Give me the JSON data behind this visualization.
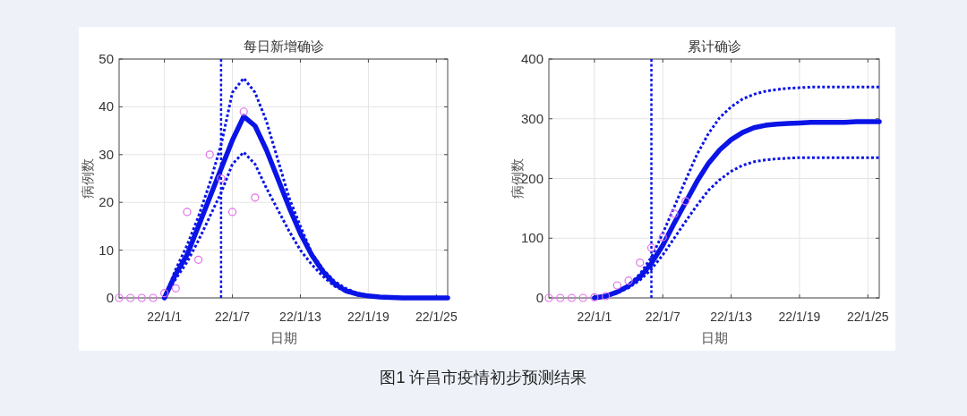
{
  "chart_data": [
    {
      "type": "line",
      "title": "每日新增确诊",
      "xlabel": "日期",
      "ylabel": "病例数",
      "ylim": [
        0,
        50
      ],
      "yticks": [
        0,
        10,
        20,
        30,
        40,
        50
      ],
      "categories": [
        null,
        null,
        null,
        null,
        "22/1/1",
        null,
        null,
        null,
        null,
        null,
        "22/1/7",
        null,
        null,
        null,
        null,
        null,
        "22/1/13",
        null,
        null,
        null,
        null,
        null,
        "22/1/19",
        null,
        null,
        null,
        null,
        null,
        "22/1/25",
        null
      ],
      "grid": true,
      "annotations": [
        "图1 许昌市疫情初步预测结果"
      ],
      "series": [
        {
          "type": "line",
          "line_style": "dotted",
          "color": "#0a14e6",
          "values": [
            null,
            null,
            null,
            null,
            0,
            6,
            11,
            17,
            24,
            32,
            43,
            46,
            43,
            37,
            29,
            21,
            15,
            9.4,
            6,
            3.5,
            2,
            1,
            0.5,
            0.2,
            0.1,
            0,
            0,
            0,
            0,
            0
          ]
        },
        {
          "type": "line",
          "line_style": "dotted",
          "color": "#0a14e6",
          "values": [
            null,
            null,
            null,
            null,
            0,
            4,
            7.5,
            12,
            17,
            22,
            28,
            30.5,
            28,
            23,
            18.5,
            14,
            10,
            7,
            4.5,
            2.5,
            1.3,
            0.6,
            0.3,
            0.1,
            0,
            0,
            0,
            0,
            0,
            0
          ]
        },
        {
          "type": "line",
          "line_style": "solid",
          "color": "#0a14e6",
          "values": [
            null,
            null,
            null,
            null,
            0,
            5,
            9,
            15,
            21,
            27,
            33,
            38,
            36,
            31,
            25,
            19,
            13.5,
            9,
            5.5,
            3,
            1.5,
            0.8,
            0.4,
            0.2,
            0.1,
            0,
            0,
            0,
            0,
            0
          ]
        },
        {
          "type": "scatter",
          "marker": "circle",
          "color": "#e070e8",
          "values": [
            0,
            0,
            0,
            0,
            1,
            2,
            18,
            8,
            30,
            25,
            18,
            39,
            21,
            null,
            null,
            null,
            null,
            null,
            null,
            null,
            null,
            null,
            null,
            null,
            null,
            null,
            null,
            null,
            null,
            null
          ]
        }
      ]
    },
    {
      "type": "line",
      "title": "累计确诊",
      "xlabel": "日期",
      "ylabel": "病例数",
      "ylim": [
        0,
        400
      ],
      "yticks": [
        0,
        100,
        200,
        300,
        400
      ],
      "categories": [
        null,
        null,
        null,
        null,
        "22/1/1",
        null,
        null,
        null,
        null,
        null,
        "22/1/7",
        null,
        null,
        null,
        null,
        null,
        "22/1/13",
        null,
        null,
        null,
        null,
        null,
        "22/1/19",
        null,
        null,
        null,
        null,
        null,
        "22/1/25",
        null
      ],
      "grid": true,
      "series": [
        {
          "type": "scatter",
          "marker": "circle",
          "color": "#e070e8",
          "values": [
            0,
            0,
            0,
            0,
            1,
            3,
            21,
            29,
            59,
            84,
            102,
            141,
            162,
            null,
            null,
            null,
            null,
            null,
            null,
            null,
            null,
            null,
            null,
            null,
            null,
            null,
            null,
            null,
            null,
            null
          ]
        },
        {
          "type": "line",
          "line_style": "dotted",
          "color": "#0a14e6",
          "values": [
            null,
            null,
            null,
            null,
            0,
            3,
            10,
            22,
            40,
            68,
            108,
            152,
            197,
            240,
            275,
            302,
            320,
            333,
            341,
            346,
            349,
            351,
            352,
            353,
            353,
            353,
            353,
            353,
            353,
            353
          ]
        },
        {
          "type": "line",
          "line_style": "dotted",
          "color": "#0a14e6",
          "values": [
            null,
            null,
            null,
            null,
            0,
            2,
            8,
            17,
            30,
            48,
            72,
            100,
            128,
            155,
            180,
            198,
            212,
            222,
            228,
            231,
            233,
            234,
            235,
            235,
            235,
            235,
            235,
            235,
            235,
            235
          ]
        },
        {
          "type": "line",
          "line_style": "solid",
          "color": "#0a14e6",
          "values": [
            null,
            null,
            null,
            null,
            0,
            3,
            10,
            20,
            35,
            58,
            88,
            125,
            160,
            195,
            225,
            248,
            265,
            277,
            285,
            289,
            291,
            292,
            293,
            294,
            294,
            294,
            294,
            295,
            295,
            295
          ]
        }
      ]
    }
  ]
}
